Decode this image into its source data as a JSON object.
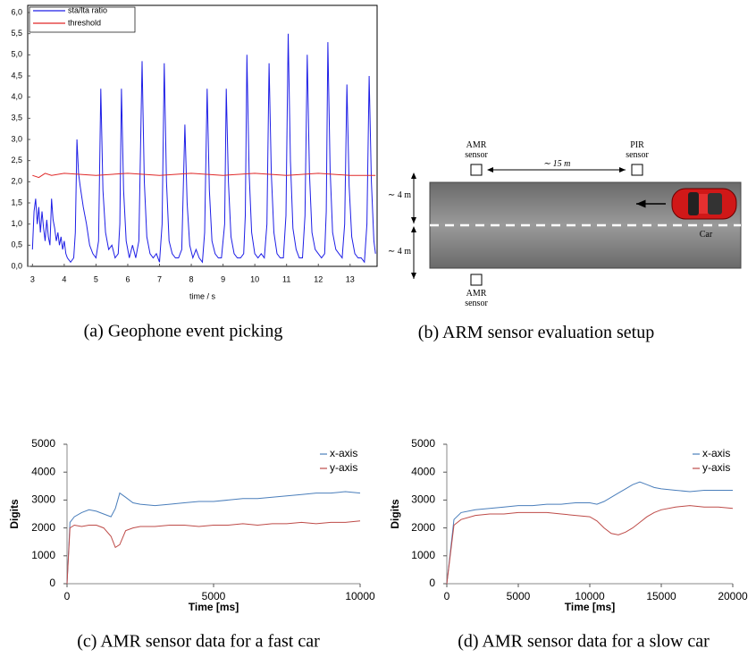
{
  "chart_data": [
    {
      "type": "line",
      "caption": "(a) Geophone event picking",
      "xlabel": "time / s",
      "xlim": [
        2.85,
        13.85
      ],
      "xticks": [
        3,
        4,
        5,
        6,
        7,
        8,
        9,
        10,
        11,
        12,
        13
      ],
      "ylim": [
        0,
        6
      ],
      "yticks": [
        {
          "value": 0,
          "label": "0,0"
        },
        {
          "value": 0.5,
          "label": "0,5"
        },
        {
          "value": 1,
          "label": "1,0"
        },
        {
          "value": 1.5,
          "label": "1,5"
        },
        {
          "value": 2,
          "label": "2,0"
        },
        {
          "value": 2.5,
          "label": "2,5"
        },
        {
          "value": 3,
          "label": "3,0"
        },
        {
          "value": 3.5,
          "label": "3,5"
        },
        {
          "value": 4,
          "label": "4,0"
        },
        {
          "value": 4.5,
          "label": "4,5"
        },
        {
          "value": 5,
          "label": "5,0"
        },
        {
          "value": 5.5,
          "label": "5,5"
        },
        {
          "value": 6,
          "label": "6,0"
        }
      ],
      "frame": true,
      "legend": "upper left",
      "series": [
        {
          "name": "sta/lta ratio",
          "color": "#1e1ee6",
          "x": [
            3.0,
            3.05,
            3.1,
            3.15,
            3.2,
            3.25,
            3.3,
            3.35,
            3.4,
            3.45,
            3.5,
            3.55,
            3.6,
            3.65,
            3.7,
            3.75,
            3.8,
            3.85,
            3.9,
            3.95,
            4.0,
            4.05,
            4.1,
            4.2,
            4.3,
            4.35,
            4.4,
            4.45,
            4.5,
            4.6,
            4.7,
            4.8,
            4.9,
            5.0,
            5.08,
            5.15,
            5.22,
            5.3,
            5.4,
            5.5,
            5.6,
            5.7,
            5.75,
            5.8,
            5.87,
            5.95,
            6.05,
            6.15,
            6.25,
            6.35,
            6.45,
            6.52,
            6.6,
            6.7,
            6.8,
            6.9,
            7.0,
            7.08,
            7.15,
            7.22,
            7.3,
            7.4,
            7.5,
            7.6,
            7.7,
            7.8,
            7.87,
            7.95,
            8.05,
            8.15,
            8.25,
            8.35,
            8.42,
            8.5,
            8.57,
            8.65,
            8.75,
            8.85,
            8.95,
            9.05,
            9.1,
            9.17,
            9.25,
            9.35,
            9.45,
            9.55,
            9.65,
            9.7,
            9.75,
            9.82,
            9.9,
            10.0,
            10.1,
            10.2,
            10.3,
            10.38,
            10.45,
            10.52,
            10.6,
            10.7,
            10.8,
            10.9,
            10.98,
            11.05,
            11.12,
            11.2,
            11.3,
            11.4,
            11.5,
            11.58,
            11.65,
            11.72,
            11.8,
            11.9,
            12.0,
            12.1,
            12.2,
            12.25,
            12.3,
            12.37,
            12.45,
            12.55,
            12.65,
            12.75,
            12.83,
            12.9,
            12.97,
            13.05,
            13.15,
            13.25,
            13.35,
            13.45,
            13.53,
            13.6,
            13.67,
            13.75,
            13.8
          ],
          "values": [
            0.4,
            1.3,
            1.6,
            1.0,
            1.4,
            0.8,
            1.3,
            0.9,
            0.6,
            1.1,
            0.7,
            0.5,
            1.6,
            1.1,
            0.9,
            0.6,
            0.8,
            0.5,
            0.7,
            0.4,
            0.6,
            0.3,
            0.2,
            0.1,
            0.2,
            0.8,
            3.0,
            2.2,
            1.9,
            1.4,
            1.0,
            0.5,
            0.3,
            0.2,
            0.6,
            4.2,
            1.8,
            0.8,
            0.4,
            0.5,
            0.2,
            0.3,
            1.0,
            4.2,
            1.8,
            0.6,
            0.2,
            0.5,
            0.2,
            0.6,
            4.85,
            2.0,
            0.7,
            0.3,
            0.2,
            0.3,
            0.1,
            1.0,
            4.8,
            2.0,
            0.6,
            0.3,
            0.2,
            0.2,
            0.4,
            3.35,
            1.5,
            0.5,
            0.2,
            0.4,
            0.2,
            0.1,
            0.8,
            4.2,
            1.8,
            0.6,
            0.3,
            0.2,
            0.2,
            1.0,
            4.2,
            2.0,
            0.7,
            0.3,
            0.2,
            0.2,
            0.3,
            1.2,
            5.0,
            2.2,
            0.8,
            0.3,
            0.2,
            0.3,
            0.2,
            1.0,
            4.8,
            2.2,
            0.8,
            0.3,
            0.2,
            0.2,
            1.2,
            5.5,
            2.5,
            0.9,
            0.4,
            0.2,
            0.2,
            1.2,
            5.0,
            2.2,
            0.8,
            0.4,
            0.3,
            0.2,
            0.3,
            1.3,
            5.3,
            2.3,
            0.8,
            0.4,
            0.3,
            0.2,
            1.0,
            4.3,
            1.9,
            0.7,
            0.3,
            0.2,
            0.2,
            0.1,
            1.0,
            4.5,
            2.0,
            0.6,
            0.3
          ]
        },
        {
          "name": "threshold",
          "color": "#e02828",
          "x": [
            3,
            3.2,
            3.4,
            3.6,
            4,
            5,
            6,
            7,
            8,
            9,
            10,
            11,
            12,
            13,
            13.8
          ],
          "values": [
            2.15,
            2.1,
            2.2,
            2.15,
            2.2,
            2.15,
            2.2,
            2.15,
            2.2,
            2.15,
            2.2,
            2.15,
            2.2,
            2.15,
            2.15
          ]
        }
      ]
    },
    {
      "type": "line",
      "caption": "(c) AMR sensor data for a fast car",
      "xlabel": "Time [ms]",
      "ylabel": "Digits",
      "xlim": [
        0,
        10000
      ],
      "xticks": [
        0,
        5000,
        10000
      ],
      "ylim": [
        0,
        5000
      ],
      "yticks": [
        0,
        1000,
        2000,
        3000,
        4000,
        5000
      ],
      "frame": false,
      "legend": "upper right",
      "series": [
        {
          "name": "x-axis",
          "color": "#4a7ebb",
          "x": [
            0,
            100,
            250,
            500,
            750,
            1000,
            1250,
            1500,
            1650,
            1800,
            2000,
            2250,
            2500,
            3000,
            3500,
            4000,
            4500,
            5000,
            5500,
            6000,
            6500,
            7000,
            7500,
            8000,
            8500,
            9000,
            9500,
            10000
          ],
          "values": [
            0,
            2200,
            2400,
            2550,
            2650,
            2600,
            2500,
            2400,
            2700,
            3250,
            3100,
            2900,
            2850,
            2800,
            2850,
            2900,
            2950,
            2950,
            3000,
            3050,
            3050,
            3100,
            3150,
            3200,
            3250,
            3250,
            3300,
            3250
          ]
        },
        {
          "name": "y-axis",
          "color": "#be4b48",
          "x": [
            0,
            100,
            250,
            500,
            750,
            1000,
            1250,
            1500,
            1650,
            1800,
            2000,
            2250,
            2500,
            3000,
            3500,
            4000,
            4500,
            5000,
            5500,
            6000,
            6500,
            7000,
            7500,
            8000,
            8500,
            9000,
            9500,
            10000
          ],
          "values": [
            0,
            2000,
            2100,
            2050,
            2100,
            2100,
            2000,
            1700,
            1300,
            1400,
            1900,
            2000,
            2050,
            2050,
            2100,
            2100,
            2050,
            2100,
            2100,
            2150,
            2100,
            2150,
            2150,
            2200,
            2150,
            2200,
            2200,
            2250
          ]
        }
      ]
    },
    {
      "type": "line",
      "caption": "(d) AMR sensor data for a slow car",
      "xlabel": "Time [ms]",
      "ylabel": "Digits",
      "xlim": [
        0,
        20000
      ],
      "xticks": [
        0,
        5000,
        10000,
        15000,
        20000
      ],
      "ylim": [
        0,
        5000
      ],
      "yticks": [
        0,
        1000,
        2000,
        3000,
        4000,
        5000
      ],
      "frame": false,
      "legend": "upper right",
      "series": [
        {
          "name": "x-axis",
          "color": "#4a7ebb",
          "x": [
            0,
            500,
            1000,
            2000,
            3000,
            4000,
            5000,
            6000,
            7000,
            8000,
            9000,
            10000,
            10500,
            11000,
            11500,
            12000,
            12500,
            13000,
            13500,
            14000,
            14500,
            15000,
            16000,
            17000,
            18000,
            19000,
            20000
          ],
          "values": [
            0,
            2300,
            2550,
            2650,
            2700,
            2750,
            2800,
            2800,
            2850,
            2850,
            2900,
            2900,
            2850,
            2950,
            3100,
            3250,
            3400,
            3550,
            3650,
            3550,
            3450,
            3400,
            3350,
            3300,
            3350,
            3350,
            3350
          ]
        },
        {
          "name": "y-axis",
          "color": "#be4b48",
          "x": [
            0,
            500,
            1000,
            2000,
            3000,
            4000,
            5000,
            6000,
            7000,
            8000,
            9000,
            10000,
            10500,
            11000,
            11500,
            12000,
            12500,
            13000,
            13500,
            14000,
            14500,
            15000,
            16000,
            17000,
            18000,
            19000,
            20000
          ],
          "values": [
            0,
            2100,
            2300,
            2450,
            2500,
            2500,
            2550,
            2550,
            2550,
            2500,
            2450,
            2400,
            2250,
            2000,
            1800,
            1750,
            1850,
            2000,
            2200,
            2400,
            2550,
            2650,
            2750,
            2800,
            2750,
            2750,
            2700
          ]
        }
      ]
    }
  ],
  "diagram": {
    "caption": "(b) ARM sensor evaluation setup",
    "sensors": [
      "AMR sensor",
      "PIR sensor",
      "AMR sensor"
    ],
    "distance": "∼ 15 m",
    "lane_widths": [
      "∼ 4 m",
      "∼ 4 m"
    ],
    "car": "Car"
  }
}
